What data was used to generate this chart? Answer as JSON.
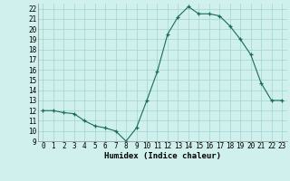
{
  "x": [
    0,
    1,
    2,
    3,
    4,
    5,
    6,
    7,
    8,
    9,
    10,
    11,
    12,
    13,
    14,
    15,
    16,
    17,
    18,
    19,
    20,
    21,
    22,
    23
  ],
  "y": [
    12.0,
    12.0,
    11.8,
    11.7,
    11.0,
    10.5,
    10.3,
    10.0,
    9.0,
    10.3,
    13.0,
    15.8,
    19.5,
    21.2,
    22.2,
    21.5,
    21.5,
    21.3,
    20.3,
    19.0,
    17.5,
    14.7,
    13.0,
    13.0
  ],
  "xlabel": "Humidex (Indice chaleur)",
  "ylim": [
    9,
    22.5
  ],
  "yticks": [
    9,
    10,
    11,
    12,
    13,
    14,
    15,
    16,
    17,
    18,
    19,
    20,
    21,
    22
  ],
  "xticks": [
    0,
    1,
    2,
    3,
    4,
    5,
    6,
    7,
    8,
    9,
    10,
    11,
    12,
    13,
    14,
    15,
    16,
    17,
    18,
    19,
    20,
    21,
    22,
    23
  ],
  "line_color": "#1a6b5a",
  "marker_color": "#1a6b5a",
  "bg_color": "#cff0ec",
  "grid_color": "#a0d4ce",
  "label_font": 5.5,
  "xlabel_font": 6.5
}
